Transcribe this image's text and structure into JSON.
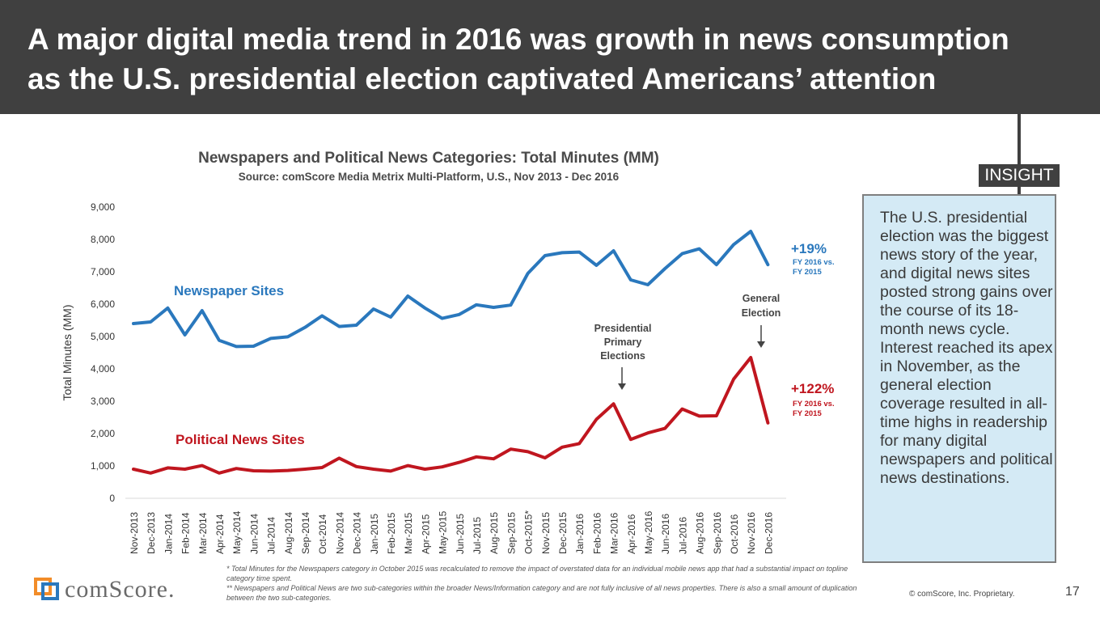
{
  "header": {
    "title_line1": "A major digital media trend in 2016 was growth in news consumption",
    "title_line2": "as the U.S. presidential election captivated Americans’ attention"
  },
  "colors": {
    "newspaper": "#2a78bd",
    "political": "#c0161f",
    "header_bg": "#404040",
    "insight_bg": "#d4eaf5"
  },
  "chart_data": {
    "type": "line",
    "title": "Newspapers and Political News Categories: Total Minutes (MM)",
    "subtitle": "Source: comScore Media Metrix Multi-Platform, U.S., Nov 2013 - Dec 2016",
    "ylabel": "Total Minutes (MM)",
    "xlabel": "",
    "ylim": [
      0,
      9000
    ],
    "yticks": [
      "0",
      "1,000",
      "2,000",
      "3,000",
      "4,000",
      "5,000",
      "6,000",
      "7,000",
      "8,000",
      "9,000"
    ],
    "categories": [
      "Nov-2013",
      "Dec-2013",
      "Jan-2014",
      "Feb-2014",
      "Mar-2014",
      "Apr-2014",
      "May-2014",
      "Jun-2014",
      "Jul-2014",
      "Aug-2014",
      "Sep-2014",
      "Oct-2014",
      "Nov-2014",
      "Dec-2014",
      "Jan-2015",
      "Feb-2015",
      "Mar-2015",
      "Apr-2015",
      "May-2015",
      "Jun-2015",
      "Jul-2015",
      "Aug-2015",
      "Sep-2015",
      "Oct-2015*",
      "Nov-2015",
      "Dec-2015",
      "Jan-2016",
      "Feb-2016",
      "Mar-2016",
      "Apr-2016",
      "May-2016",
      "Jun-2016",
      "Jul-2016",
      "Aug-2016",
      "Sep-2016",
      "Oct-2016",
      "Nov-2016",
      "Dec-2016"
    ],
    "series": [
      {
        "name": "Newspaper Sites",
        "values": [
          5400,
          5450,
          5880,
          5050,
          5800,
          4880,
          4690,
          4700,
          4940,
          4990,
          5280,
          5640,
          5310,
          5350,
          5850,
          5600,
          6250,
          5880,
          5560,
          5680,
          5980,
          5900,
          5970,
          6950,
          7500,
          7590,
          7610,
          7200,
          7650,
          6750,
          6600,
          7100,
          7560,
          7710,
          7220,
          7840,
          8250,
          7220
        ]
      },
      {
        "name": "Political News Sites",
        "values": [
          900,
          780,
          940,
          900,
          1010,
          780,
          920,
          850,
          840,
          860,
          900,
          950,
          1240,
          980,
          900,
          840,
          1010,
          900,
          970,
          1110,
          1280,
          1220,
          1520,
          1440,
          1250,
          1580,
          1690,
          2440,
          2920,
          1820,
          2020,
          2160,
          2760,
          2540,
          2550,
          3680,
          4350,
          2330
        ]
      }
    ],
    "series_labels": {
      "newspaper": "Newspaper Sites",
      "political": "Political News Sites"
    },
    "annotations": {
      "newspaper_change": "+19%",
      "newspaper_change_sub1": "FY 2016 vs.",
      "newspaper_change_sub2": "FY 2015",
      "political_change": "+122%",
      "political_change_sub1": "FY 2016 vs.",
      "political_change_sub2": "FY 2015",
      "primary_line1": "Presidential",
      "primary_line2": "Primary",
      "primary_line3": "Elections",
      "general_line1": "General",
      "general_line2": "Election"
    }
  },
  "insight": {
    "tag": "INSIGHT",
    "text": "The U.S. presidential election was the biggest news story of the year, and digital news sites posted strong gains over the course of its 18-month news cycle. Interest reached its apex in November, as the general election coverage resulted in all-time highs in readership for many digital newspapers and political news destinations."
  },
  "footer": {
    "note1": "* Total Minutes for the Newspapers category in October 2015 was recalculated to remove the impact of overstated data for an individual mobile news app that had a substantial impact on topline category time spent.",
    "note2": "** Newspapers and Political News are two sub-categories within the broader News/Information category and are not fully inclusive of all news properties. There is also a small amount of duplication between the two sub-categories.",
    "logo_text": "comScore.",
    "copyright": "© comScore, Inc. Proprietary.",
    "page_number": "17"
  }
}
